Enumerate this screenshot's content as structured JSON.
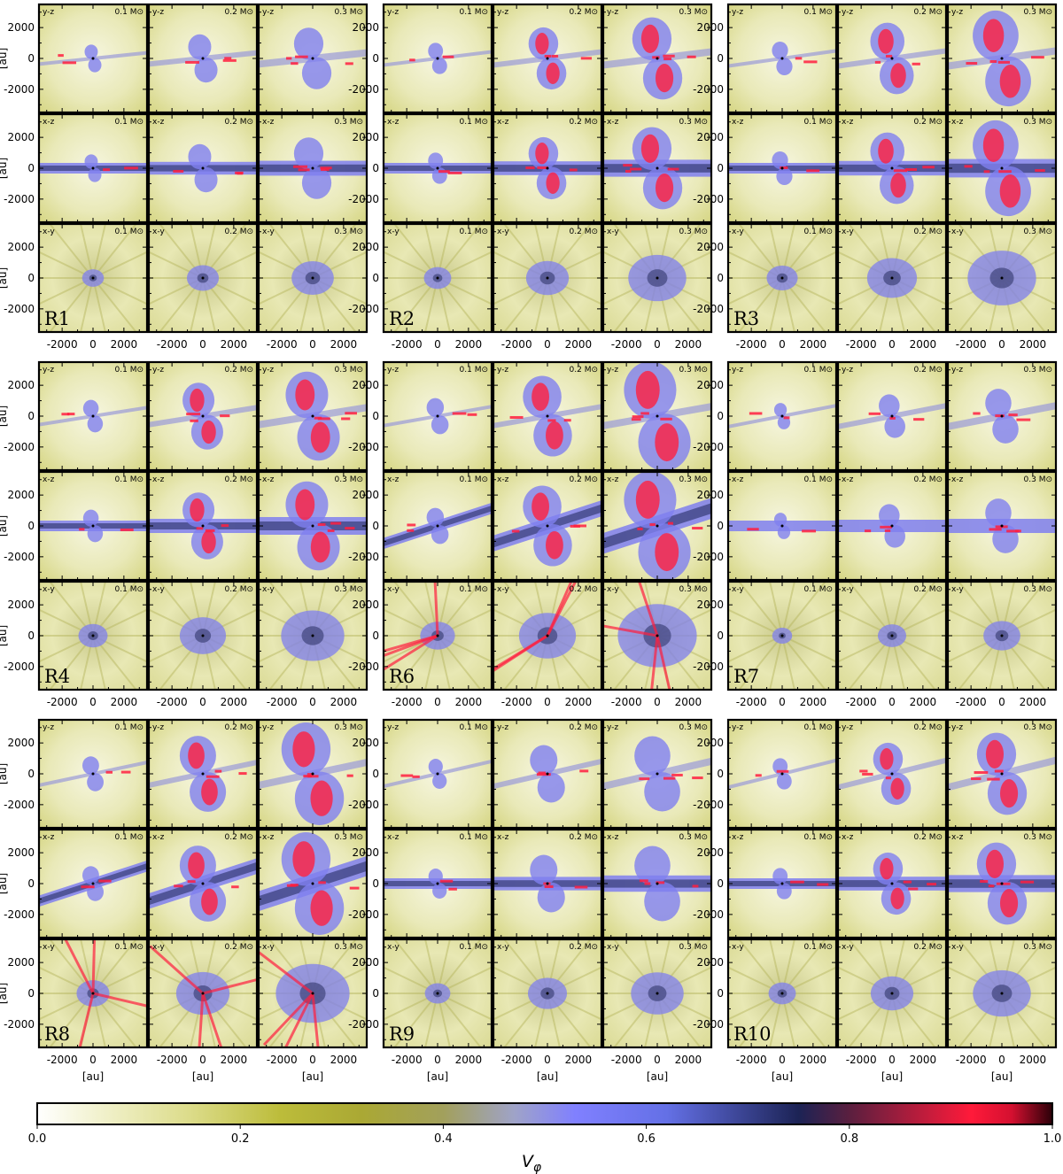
{
  "chart_data": {
    "type": "heatmap",
    "quantity_label": "V",
    "quantity_subscript": "φ",
    "runs": [
      "R1",
      "R2",
      "R3",
      "R4",
      "R6",
      "R7",
      "R8",
      "R9",
      "R10"
    ],
    "projections": [
      "y-z",
      "x-z",
      "x-y"
    ],
    "masses": [
      "0.1 M⊙",
      "0.2 M⊙",
      "0.3 M⊙"
    ],
    "axis_unit_label": "[au]",
    "x_ticks": [
      "-2000",
      "0",
      "2000"
    ],
    "y_ticks": [
      "2000",
      "0",
      "-2000"
    ],
    "axis_range_au": [
      -3500,
      3500
    ],
    "colorbar": {
      "range": [
        0.0,
        1.0
      ],
      "ticks": [
        "0.0",
        "0.2",
        "0.4",
        "0.6",
        "0.8",
        "1.0"
      ],
      "colors": [
        "#ffffff",
        "#f2f2cf",
        "#dcdc8a",
        "#bcbc3a",
        "#aaa834",
        "#a2a05c",
        "#9fa3c8",
        "#8080ff",
        "#6470e6",
        "#1c2355",
        "#5a1f3f",
        "#ff1a3a",
        "#d41030",
        "#2a0008"
      ],
      "color_stops": [
        0.0,
        0.06,
        0.15,
        0.24,
        0.32,
        0.4,
        0.47,
        0.53,
        0.62,
        0.75,
        0.8,
        0.92,
        0.96,
        1.0
      ]
    },
    "grid": false,
    "legend": "none"
  }
}
